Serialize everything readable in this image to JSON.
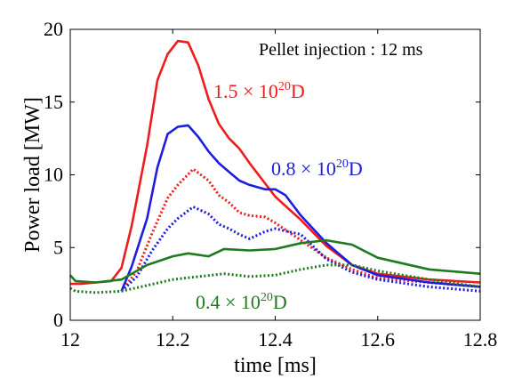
{
  "chart_data": {
    "type": "line",
    "xlabel": "time [ms]",
    "ylabel": "Power load [MW]",
    "xlim": [
      12,
      12.8
    ],
    "ylim": [
      0,
      20
    ],
    "xticks": [
      "12",
      "12.2",
      "12.4",
      "12.6",
      "12.8"
    ],
    "yticks": [
      "0",
      "5",
      "10",
      "15",
      "20"
    ],
    "grid": false,
    "annotation": "Pellet injection : 12 ms",
    "series": [
      {
        "label": {
          "pre": "1.5 × 10",
          "sup": "20",
          "post": "D"
        },
        "color": "#ee1c1c",
        "solid": {
          "x": [
            12.0,
            12.02,
            12.05,
            12.08,
            12.1,
            12.12,
            12.15,
            12.17,
            12.19,
            12.21,
            12.23,
            12.25,
            12.27,
            12.29,
            12.31,
            12.33,
            12.35,
            12.4,
            12.45,
            12.5,
            12.55,
            12.6,
            12.7,
            12.8
          ],
          "y": [
            2.5,
            2.5,
            2.6,
            2.7,
            3.6,
            6.5,
            12.0,
            16.5,
            18.3,
            19.2,
            19.1,
            17.5,
            15.2,
            13.5,
            12.5,
            11.8,
            10.8,
            8.5,
            6.9,
            5.1,
            3.8,
            3.2,
            2.8,
            2.6
          ]
        },
        "dotted": {
          "x": [
            12.1,
            12.13,
            12.16,
            12.19,
            12.21,
            12.24,
            12.27,
            12.29,
            12.31,
            12.33,
            12.35,
            12.38,
            12.4,
            12.45,
            12.5,
            12.55,
            12.6,
            12.7,
            12.8
          ],
          "y": [
            2.0,
            3.4,
            6.0,
            8.4,
            9.3,
            10.4,
            9.6,
            8.6,
            8.1,
            7.4,
            7.2,
            7.1,
            6.7,
            5.5,
            4.3,
            3.5,
            2.9,
            2.6,
            2.3
          ]
        }
      },
      {
        "label": {
          "pre": "0.8 × 10",
          "sup": "20",
          "post": "D"
        },
        "color": "#1d1de0",
        "solid": {
          "x": [
            12.1,
            12.12,
            12.15,
            12.17,
            12.19,
            12.21,
            12.23,
            12.25,
            12.27,
            12.29,
            12.31,
            12.33,
            12.35,
            12.38,
            12.4,
            12.42,
            12.45,
            12.5,
            12.55,
            12.6,
            12.7,
            12.8
          ],
          "y": [
            2.0,
            3.7,
            7.0,
            10.5,
            12.8,
            13.3,
            13.4,
            12.6,
            11.6,
            10.8,
            10.2,
            9.6,
            9.3,
            9.0,
            9.0,
            8.6,
            7.2,
            5.3,
            3.8,
            3.1,
            2.6,
            2.3
          ]
        },
        "dotted": {
          "x": [
            12.1,
            12.13,
            12.16,
            12.19,
            12.21,
            12.24,
            12.27,
            12.29,
            12.31,
            12.33,
            12.35,
            12.38,
            12.4,
            12.45,
            12.5,
            12.55,
            12.6,
            12.7,
            12.8
          ],
          "y": [
            2.0,
            3.0,
            4.8,
            6.3,
            7.0,
            7.8,
            7.3,
            6.6,
            6.3,
            5.9,
            5.6,
            6.1,
            6.3,
            5.9,
            4.2,
            3.3,
            2.8,
            2.3,
            2.0
          ]
        }
      },
      {
        "label": {
          "pre": "0.4 × 10",
          "sup": "20",
          "post": "D"
        },
        "color": "#1f7a1f",
        "solid": {
          "x": [
            12.0,
            12.01,
            12.05,
            12.1,
            12.15,
            12.2,
            12.23,
            12.27,
            12.3,
            12.35,
            12.4,
            12.45,
            12.5,
            12.55,
            12.6,
            12.7,
            12.8
          ],
          "y": [
            3.1,
            2.7,
            2.6,
            2.8,
            3.8,
            4.4,
            4.6,
            4.4,
            4.9,
            4.8,
            4.9,
            5.3,
            5.5,
            5.2,
            4.3,
            3.5,
            3.2
          ]
        },
        "dotted": {
          "x": [
            12.0,
            12.01,
            12.05,
            12.1,
            12.15,
            12.2,
            12.25,
            12.3,
            12.35,
            12.4,
            12.45,
            12.5,
            12.55,
            12.6,
            12.7,
            12.8
          ],
          "y": [
            2.2,
            2.0,
            1.9,
            2.0,
            2.4,
            2.8,
            3.0,
            3.2,
            3.0,
            3.1,
            3.5,
            3.8,
            3.8,
            3.4,
            2.8,
            2.3
          ]
        }
      }
    ]
  }
}
